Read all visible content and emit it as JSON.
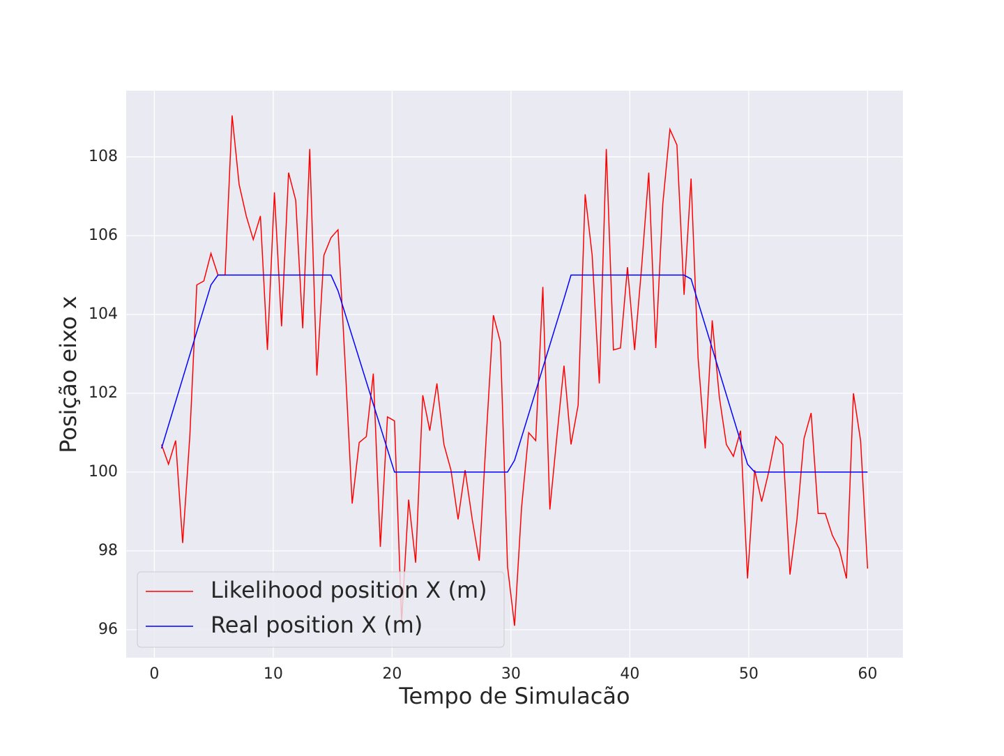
{
  "chart_data": {
    "type": "line",
    "xlabel": "Tempo de Simulacão",
    "ylabel": "Posição eixo x",
    "xlim": [
      -2.37,
      62.97
    ],
    "ylim": [
      95.29,
      109.68
    ],
    "xticks": [
      0,
      10,
      20,
      30,
      40,
      50,
      60
    ],
    "yticks": [
      96,
      98,
      100,
      102,
      104,
      106,
      108
    ],
    "grid": true,
    "legend": "lower left",
    "series": [
      {
        "name": "Likelihood position X (m)",
        "color": "#ff0000",
        "x": [
          0.6,
          1.19,
          1.79,
          2.38,
          2.98,
          3.57,
          4.16,
          4.76,
          5.35,
          5.95,
          6.54,
          7.13,
          7.73,
          8.32,
          8.92,
          9.51,
          10.1,
          10.7,
          11.29,
          11.89,
          12.48,
          13.07,
          13.67,
          14.26,
          14.86,
          15.45,
          16.04,
          16.64,
          17.23,
          17.83,
          18.42,
          19.01,
          19.61,
          20.2,
          20.8,
          21.39,
          21.98,
          22.58,
          23.17,
          23.77,
          24.36,
          24.95,
          25.55,
          26.14,
          26.74,
          27.33,
          27.92,
          28.52,
          29.11,
          29.71,
          30.3,
          30.89,
          31.49,
          32.08,
          32.68,
          33.27,
          33.86,
          34.46,
          35.05,
          35.65,
          36.24,
          36.83,
          37.43,
          38.02,
          38.62,
          39.21,
          39.8,
          40.4,
          40.99,
          41.59,
          42.18,
          42.77,
          43.37,
          43.96,
          44.56,
          45.15,
          45.74,
          46.34,
          46.93,
          47.53,
          48.12,
          48.71,
          49.31,
          49.9,
          50.5,
          51.09,
          51.68,
          52.28,
          52.87,
          53.47,
          54.06,
          54.65,
          55.25,
          55.84,
          56.44,
          57.03,
          57.62,
          58.22,
          58.81,
          59.41,
          60.0
        ],
        "values": [
          100.7,
          100.2,
          100.8,
          98.2,
          100.9,
          104.75,
          104.85,
          105.55,
          105.0,
          105.0,
          109.05,
          107.3,
          106.5,
          105.9,
          106.5,
          103.1,
          107.1,
          103.7,
          107.6,
          106.9,
          103.65,
          108.2,
          102.45,
          105.5,
          105.95,
          106.15,
          102.8,
          99.2,
          100.75,
          100.9,
          102.5,
          98.1,
          101.4,
          101.3,
          96.2,
          99.3,
          97.7,
          101.95,
          101.05,
          102.25,
          100.7,
          100.05,
          98.8,
          100.05,
          98.8,
          97.75,
          100.9,
          103.98,
          103.3,
          97.6,
          96.1,
          99.1,
          101.0,
          100.8,
          104.7,
          99.05,
          100.9,
          102.7,
          100.7,
          101.7,
          107.05,
          105.5,
          102.25,
          108.2,
          103.1,
          103.15,
          105.2,
          103.1,
          105.2,
          107.6,
          103.15,
          106.8,
          108.7,
          108.3,
          104.5,
          107.45,
          102.9,
          100.6,
          103.85,
          101.9,
          100.7,
          100.4,
          101.05,
          97.3,
          100.05,
          99.25,
          100.0,
          100.9,
          100.7,
          97.4,
          98.8,
          100.85,
          101.5,
          98.95,
          98.95,
          98.4,
          98.05,
          97.3,
          102.0,
          100.8,
          97.55
        ]
      },
      {
        "name": "Real position X (m)",
        "color": "#0000ff",
        "x": [
          0.6,
          4.76,
          5.35,
          14.86,
          15.45,
          20.2,
          29.71,
          30.3,
          34.46,
          35.05,
          44.56,
          45.15,
          49.9,
          50.5,
          60.0
        ],
        "values": [
          100.6,
          104.75,
          105,
          105,
          104.6,
          100,
          100,
          100.3,
          104.4,
          105,
          105,
          104.9,
          100.2,
          100,
          100
        ]
      }
    ]
  }
}
